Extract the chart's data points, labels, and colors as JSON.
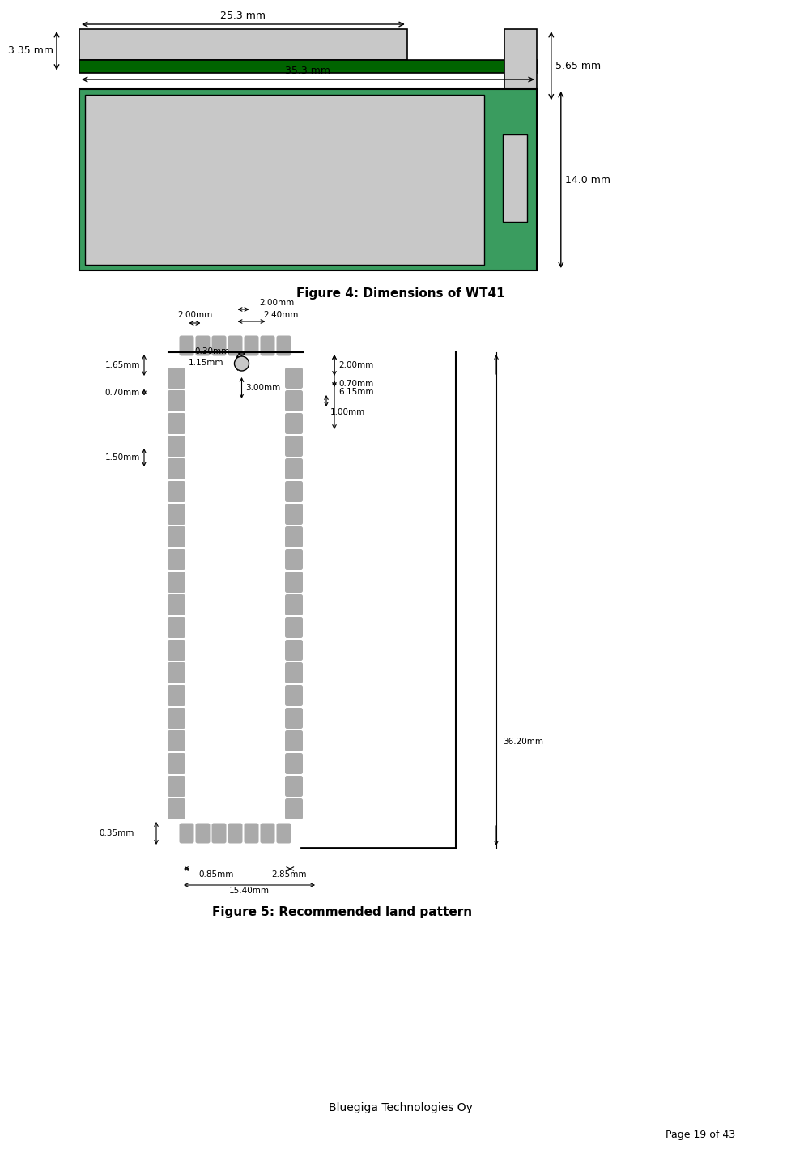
{
  "fig_width": 9.44,
  "fig_height": 14.15,
  "bg_color": "#ffffff",
  "dark_green": "#006400",
  "med_green": "#3a9c5f",
  "light_gray": "#c8c8c8",
  "dark_gray": "#909090",
  "fig4_title": "Figure 4: Dimensions of WT41",
  "fig5_title": "Figure 5: Recommended land pattern",
  "footer_company": "Bluegiga Technologies Oy",
  "footer_page": "Page 19 of 43",
  "dim_25_3": "25.3 mm",
  "dim_35_3": "35.3 mm",
  "dim_3_35": "3.35 mm",
  "dim_5_65": "5.65 mm",
  "dim_14_0": "14.0 mm",
  "lp_2_00a": "2.00mm",
  "lp_2_00b": "2.00mm",
  "lp_2_40": "2.40mm",
  "lp_1_65": "1.65mm",
  "lp_0_30": "0.30mm",
  "lp_0_70": "0.70mm",
  "lp_1_15": "1.15mm",
  "lp_3_00": "3.00mm",
  "lp_1_50": "1.50mm",
  "lp_2_00c": "2.00mm",
  "lp_0_70b": "0.70mm",
  "lp_6_15": "6.15mm",
  "lp_1_00": "1.00mm",
  "lp_36_20": "36.20mm",
  "lp_0_35": "0.35mm",
  "lp_0_85": "0.85mm",
  "lp_2_85": "2.85mm",
  "lp_15_40": "15.40mm"
}
